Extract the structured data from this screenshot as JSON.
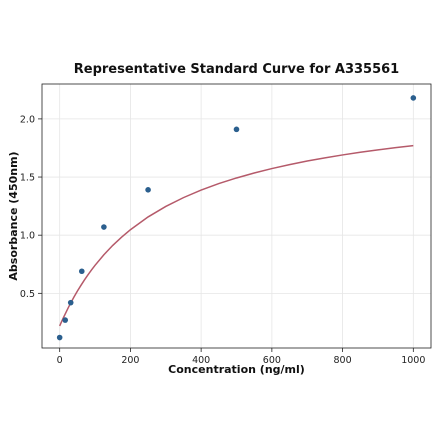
{
  "chart_data": {
    "type": "scatter",
    "title": "Representative Standard Curve for A335561",
    "xlabel": "Concentration (ng/ml)",
    "ylabel": "Absorbance (450nm)",
    "xlim": [
      -50,
      1050
    ],
    "ylim": [
      0.03,
      2.3
    ],
    "x_ticks": [
      0,
      200,
      400,
      600,
      800,
      1000
    ],
    "y_ticks": [
      0.5,
      1.0,
      1.5,
      2.0
    ],
    "x_tick_labels": [
      "0",
      "200",
      "400",
      "600",
      "800",
      "1000"
    ],
    "y_tick_labels": [
      "0.5",
      "1.0",
      "1.5",
      "2.0"
    ],
    "grid": true,
    "series": [
      {
        "marker_color": "#2b5f8e",
        "x": [
          0,
          15.625,
          31.25,
          62.5,
          125,
          250,
          500,
          1000
        ],
        "y": [
          0.12,
          0.27,
          0.42,
          0.69,
          1.07,
          1.39,
          1.91,
          2.18
        ]
      }
    ],
    "fit_curve": {
      "color": "#b55a6a",
      "x": [
        0,
        5,
        10,
        15,
        20,
        25,
        30,
        40,
        50,
        60,
        70,
        80,
        90,
        100,
        125,
        150,
        175,
        200,
        250,
        300,
        350,
        400,
        450,
        500,
        550,
        600,
        650,
        700,
        750,
        800,
        850,
        900,
        950,
        1000
      ],
      "y": [
        0.22,
        0.254,
        0.287,
        0.319,
        0.35,
        0.381,
        0.41,
        0.466,
        0.519,
        0.568,
        0.615,
        0.659,
        0.701,
        0.741,
        0.832,
        0.912,
        0.983,
        1.047,
        1.157,
        1.247,
        1.323,
        1.388,
        1.444,
        1.492,
        1.535,
        1.573,
        1.607,
        1.638,
        1.665,
        1.69,
        1.713,
        1.734,
        1.753,
        1.77
      ]
    }
  }
}
